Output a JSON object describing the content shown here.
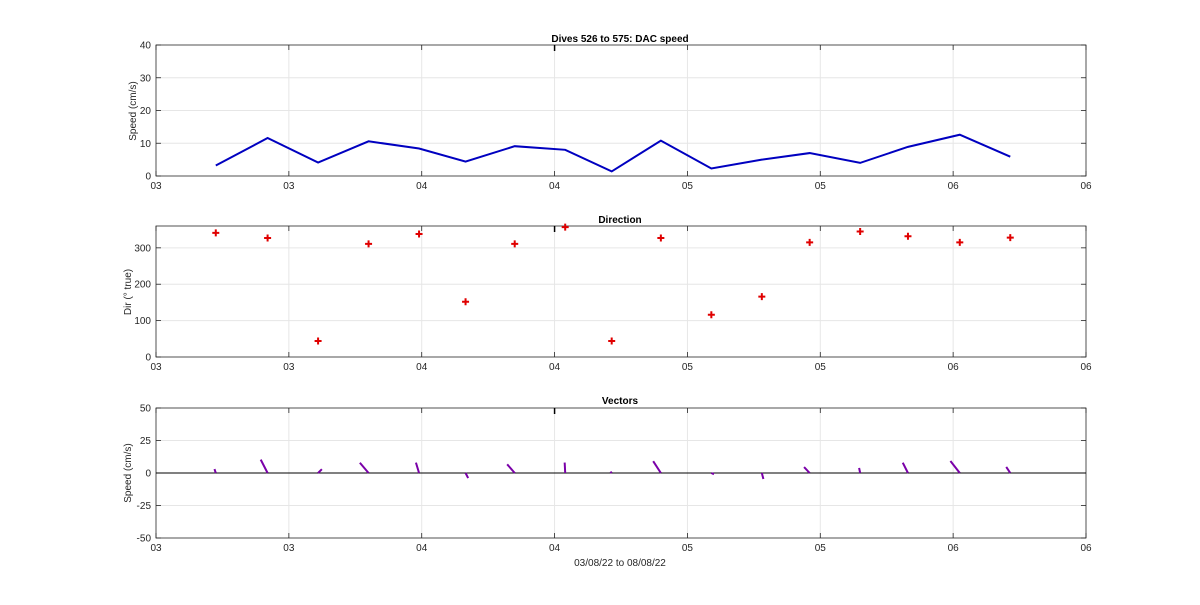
{
  "colors": {
    "speed_line": "#0000c0",
    "direction_marker": "#e00000",
    "vector": "#7a00a8",
    "grid": "#e6e6e6",
    "axis": "#262626"
  },
  "chart_data": [
    {
      "type": "line",
      "title": "Dives 526 to 575: DAC speed",
      "ylabel": "Speed (cm/s)",
      "xlabel": "",
      "xlim": [
        0,
        7
      ],
      "ylim": [
        0,
        40
      ],
      "yticks": [
        0,
        10,
        20,
        30,
        40
      ],
      "xtick_labels": [
        "03",
        "03",
        "04",
        "04",
        "05",
        "05",
        "06",
        "06"
      ],
      "grid": true,
      "series": [
        {
          "x": [
            0.45,
            0.84,
            1.22,
            1.6,
            1.98,
            2.33,
            2.7,
            3.08,
            3.43,
            3.8,
            4.18,
            4.56,
            4.92,
            5.3,
            5.66,
            6.05,
            6.43
          ],
          "values": [
            3.2,
            11.6,
            4.1,
            10.6,
            8.4,
            4.4,
            9.1,
            8.0,
            1.4,
            10.8,
            2.3,
            5.0,
            7.0,
            4.0,
            8.9,
            12.6,
            5.9
          ]
        }
      ]
    },
    {
      "type": "scatter",
      "title": "Direction",
      "ylabel": "Dir (° true)",
      "xlabel": "",
      "xlim": [
        0,
        7
      ],
      "ylim": [
        0,
        360
      ],
      "yticks": [
        0,
        100,
        200,
        300
      ],
      "xtick_labels": [
        "03",
        "03",
        "04",
        "04",
        "05",
        "05",
        "06",
        "06"
      ],
      "grid": true,
      "series": [
        {
          "x": [
            0.45,
            0.84,
            1.22,
            1.6,
            1.98,
            2.33,
            2.7,
            3.08,
            3.43,
            3.8,
            4.18,
            4.56,
            4.92,
            5.3,
            5.66,
            6.05,
            6.43
          ],
          "values": [
            341,
            327,
            44,
            311,
            338,
            152,
            311,
            357,
            44,
            327,
            116,
            166,
            315,
            345,
            332,
            315,
            328
          ]
        }
      ]
    },
    {
      "type": "line",
      "title": "Vectors",
      "ylabel": "Speed (cm/s)",
      "xlabel": "03/08/22 to 08/08/22",
      "xlim": [
        0,
        7
      ],
      "ylim": [
        -50,
        50
      ],
      "yticks": [
        -50,
        -25,
        0,
        25,
        50
      ],
      "xtick_labels": [
        "03",
        "03",
        "04",
        "04",
        "05",
        "05",
        "06",
        "06"
      ],
      "grid": true,
      "series": [
        {
          "x": [
            0.45,
            0.84,
            1.22,
            1.6,
            1.98,
            2.33,
            2.7,
            3.08,
            3.43,
            3.8,
            4.18,
            4.56,
            4.92,
            5.3,
            5.66,
            6.05,
            6.43
          ],
          "u": [
            -1.0,
            -5.3,
            2.9,
            -6.7,
            -2.4,
            2.0,
            -5.8,
            -0.4,
            -1.0,
            -5.9,
            2.0,
            1.2,
            -4.3,
            -0.8,
            -4.0,
            -7.2,
            -3.1
          ],
          "v": [
            3.0,
            10.3,
            2.9,
            7.9,
            8.0,
            -3.9,
            6.7,
            8.0,
            1.0,
            9.1,
            -0.9,
            -4.6,
            4.6,
            3.9,
            7.9,
            9.2,
            4.7
          ]
        }
      ]
    }
  ]
}
